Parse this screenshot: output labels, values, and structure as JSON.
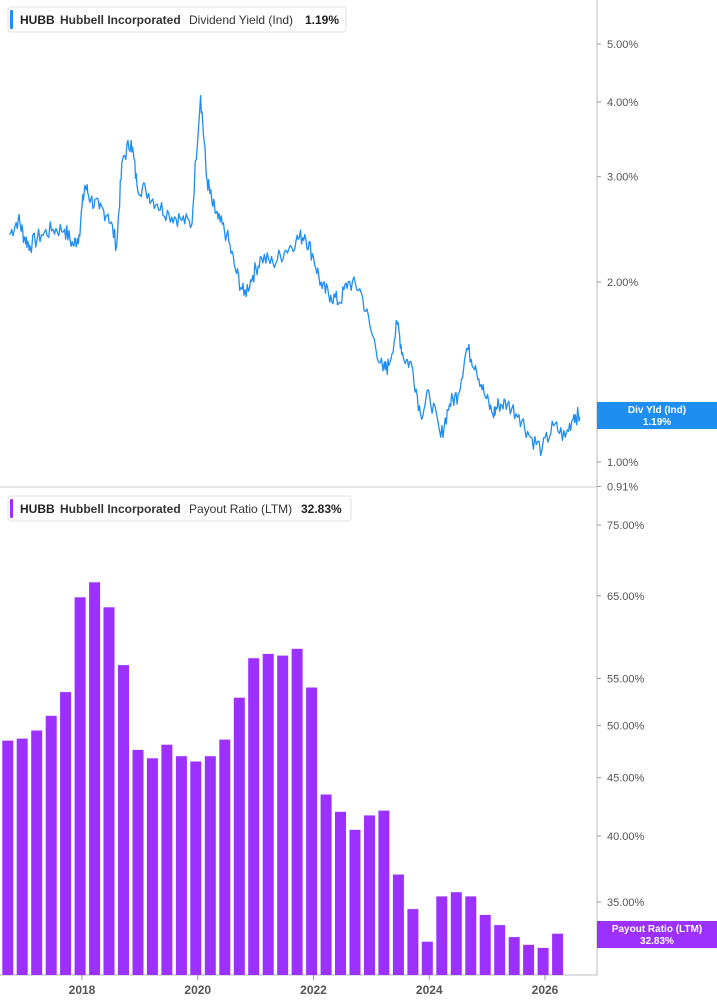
{
  "colors": {
    "yield": "#1f8ef1",
    "payout": "#9b30ff",
    "axis": "#bbbbbb",
    "text": "#555555"
  },
  "legends": [
    {
      "ticker": "HUBB",
      "name": "Hubbell Incorporated",
      "metric": "Dividend Yield (Ind)",
      "value": "1.19%"
    },
    {
      "ticker": "HUBB",
      "name": "Hubbell Incorporated",
      "metric": "Payout Ratio (LTM)",
      "value": "32.83%"
    }
  ],
  "flags": [
    {
      "line1": "Div Yld (Ind)",
      "line2": "1.19%"
    },
    {
      "line1": "Payout Ratio (LTM)",
      "line2": "32.83%"
    }
  ],
  "x_tick_labels": [
    "2018",
    "2020",
    "2022",
    "2024",
    "2026"
  ],
  "chart_data": [
    {
      "type": "line",
      "scale": "log",
      "y_tick_labels": [
        "5.00%",
        "4.00%",
        "3.00%",
        "2.00%",
        "1.00%",
        "0.91%"
      ],
      "y_ticks": [
        5.0,
        4.0,
        3.0,
        2.0,
        1.0,
        0.91
      ],
      "ylim": [
        0.91,
        5.5
      ],
      "xlim": [
        2016.75,
        2026.65
      ],
      "series": [
        {
          "name": "Dividend Yield (Ind)",
          "x": [
            2016.75,
            2016.9,
            2017.0,
            2017.1,
            2017.3,
            2017.5,
            2017.7,
            2017.85,
            2017.95,
            2018.05,
            2018.15,
            2018.3,
            2018.45,
            2018.6,
            2018.7,
            2018.85,
            2018.95,
            2019.1,
            2019.3,
            2019.5,
            2019.7,
            2019.9,
            2020.05,
            2020.15,
            2020.25,
            2020.35,
            2020.5,
            2020.65,
            2020.8,
            2020.95,
            2021.1,
            2021.3,
            2021.5,
            2021.7,
            2021.85,
            2022.0,
            2022.15,
            2022.3,
            2022.45,
            2022.6,
            2022.8,
            2023.0,
            2023.2,
            2023.3,
            2023.45,
            2023.55,
            2023.7,
            2023.85,
            2024.0,
            2024.2,
            2024.35,
            2024.5,
            2024.65,
            2024.8,
            2024.95,
            2025.1,
            2025.2,
            2025.35,
            2025.55,
            2025.75,
            2025.95,
            2026.15,
            2026.35,
            2026.5,
            2026.6
          ],
          "values": [
            2.4,
            2.55,
            2.38,
            2.3,
            2.4,
            2.45,
            2.45,
            2.3,
            2.4,
            2.9,
            2.75,
            2.65,
            2.6,
            2.3,
            3.2,
            3.45,
            2.9,
            2.85,
            2.7,
            2.6,
            2.55,
            2.5,
            4.1,
            3.0,
            2.7,
            2.55,
            2.4,
            2.1,
            1.9,
            2.05,
            2.2,
            2.15,
            2.25,
            2.35,
            2.4,
            2.2,
            1.95,
            1.9,
            1.85,
            2.0,
            1.95,
            1.65,
            1.42,
            1.45,
            1.7,
            1.5,
            1.45,
            1.2,
            1.3,
            1.1,
            1.25,
            1.3,
            1.55,
            1.45,
            1.3,
            1.2,
            1.25,
            1.25,
            1.2,
            1.1,
            1.05,
            1.15,
            1.1,
            1.2,
            1.19
          ]
        }
      ]
    },
    {
      "type": "bar",
      "scale": "log",
      "y_tick_labels": [
        "75.00%",
        "65.00%",
        "55.00%",
        "50.00%",
        "45.00%",
        "40.00%",
        "35.00%"
      ],
      "y_ticks": [
        75,
        65,
        55,
        50,
        45,
        40,
        35
      ],
      "ylim": [
        31.0,
        78.0
      ],
      "xlim": [
        2016.75,
        2026.65
      ],
      "series": [
        {
          "name": "Payout Ratio (LTM)",
          "x": [
            2016.75,
            2017.0,
            2017.25,
            2017.5,
            2017.75,
            2018.0,
            2018.25,
            2018.5,
            2018.75,
            2019.0,
            2019.25,
            2019.5,
            2019.75,
            2020.0,
            2020.25,
            2020.5,
            2020.75,
            2021.0,
            2021.25,
            2021.5,
            2021.75,
            2022.0,
            2022.25,
            2022.5,
            2022.75,
            2023.0,
            2023.25,
            2023.5,
            2023.75,
            2024.0,
            2024.25,
            2024.5,
            2024.75,
            2025.0,
            2025.25,
            2025.5,
            2025.75,
            2026.0,
            2026.25,
            2026.5
          ],
          "values": [
            49.5,
            48.5,
            48.7,
            49.5,
            51.0,
            53.5,
            64.8,
            66.8,
            63.5,
            56.5,
            47.6,
            46.8,
            48.1,
            47.0,
            46.5,
            47.0,
            48.6,
            52.9,
            57.3,
            57.8,
            57.6,
            58.4,
            54.0,
            43.5,
            42.0,
            40.5,
            41.7,
            42.1,
            37.0,
            34.5,
            32.3,
            35.4,
            35.7,
            35.4,
            34.1,
            33.4,
            32.6,
            32.1,
            31.9,
            32.83
          ]
        }
      ]
    }
  ]
}
